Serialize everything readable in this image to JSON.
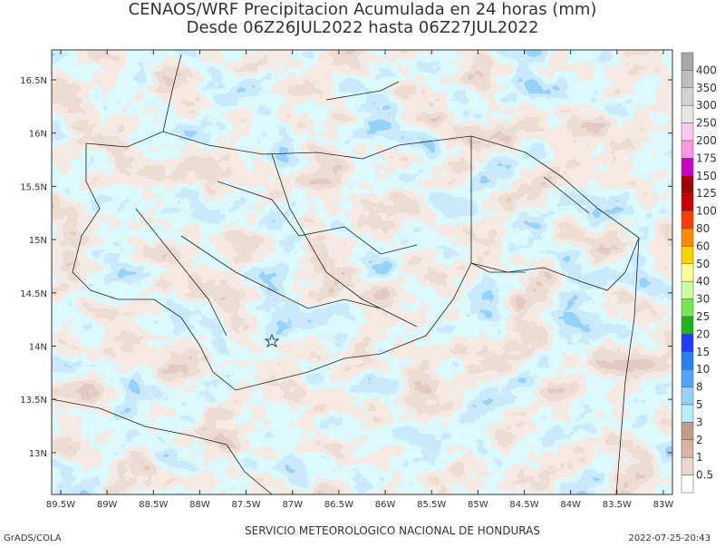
{
  "title": "CENAOS/WRF Precipitacion Acumulada en 24 horas (mm)",
  "subtitle": "Desde 06Z26JUL2022 hasta 06Z27JUL2022",
  "lat_labels": [
    "16.5N",
    "16N",
    "15.5N",
    "15N",
    "14.5N",
    "14N",
    "13.5N",
    "13N"
  ],
  "lon_labels": [
    "89.5W",
    "89W",
    "88.5W",
    "88W",
    "87.5W",
    "87W",
    "86.5W",
    "86W",
    "85.5W",
    "85W",
    "84.5W",
    "84W",
    "83.5W",
    "83W"
  ],
  "colorbar": {
    "levels": [
      400,
      350,
      300,
      250,
      200,
      175,
      150,
      125,
      100,
      80,
      60,
      50,
      40,
      30,
      25,
      20,
      15,
      10,
      8,
      5,
      3,
      2,
      1,
      0.5
    ],
    "colors": [
      "#a8a8a8",
      "#bebebe",
      "#d2d2d2",
      "#e6e6e6",
      "#ffc8f0",
      "#ff96e6",
      "#c800c8",
      "#a00000",
      "#c80000",
      "#ff3c00",
      "#ff8c00",
      "#ffd200",
      "#ffff96",
      "#c8ffa0",
      "#78e650",
      "#1eb41e",
      "#1e3cff",
      "#2882f0",
      "#50a5f5",
      "#96d2fa",
      "#b4f0fa",
      "#c49a8a",
      "#d7b4a5",
      "#ebd7cd",
      "#ffffff"
    ]
  },
  "footer": {
    "left": "GrADS/COLA",
    "center": "SERVICIO METEOROLOGICO NACIONAL DE HONDURAS",
    "right": "2022-07-25-20:43"
  }
}
